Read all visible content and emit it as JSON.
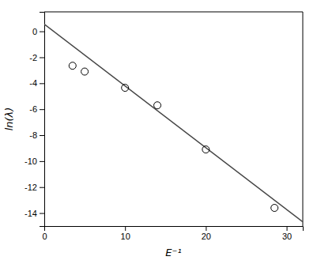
{
  "chart_data": {
    "type": "scatter",
    "xlabel": "E⁻¹",
    "ylabel": "ln(λ)",
    "xlim": [
      0,
      32
    ],
    "ylim": [
      -15.0,
      1.5
    ],
    "xticks": [
      0,
      10,
      20,
      30
    ],
    "yticks": [
      -14,
      -12,
      -10,
      -8,
      -6,
      -4,
      -2,
      0
    ],
    "grid": false,
    "series": [
      {
        "type": "line",
        "x": [
          0.0,
          32.0
        ],
        "values": [
          0.55,
          -14.682
        ],
        "color": "#444444",
        "line_style": "solid"
      },
      {
        "type": "scatter",
        "x": [
          3.5,
          5.0,
          10.0,
          14.0,
          20.0,
          28.5
        ],
        "values": [
          -2.65,
          -3.1,
          -4.35,
          -5.7,
          -9.1,
          -13.6
        ],
        "color": "black",
        "marker": "circle"
      }
    ]
  }
}
